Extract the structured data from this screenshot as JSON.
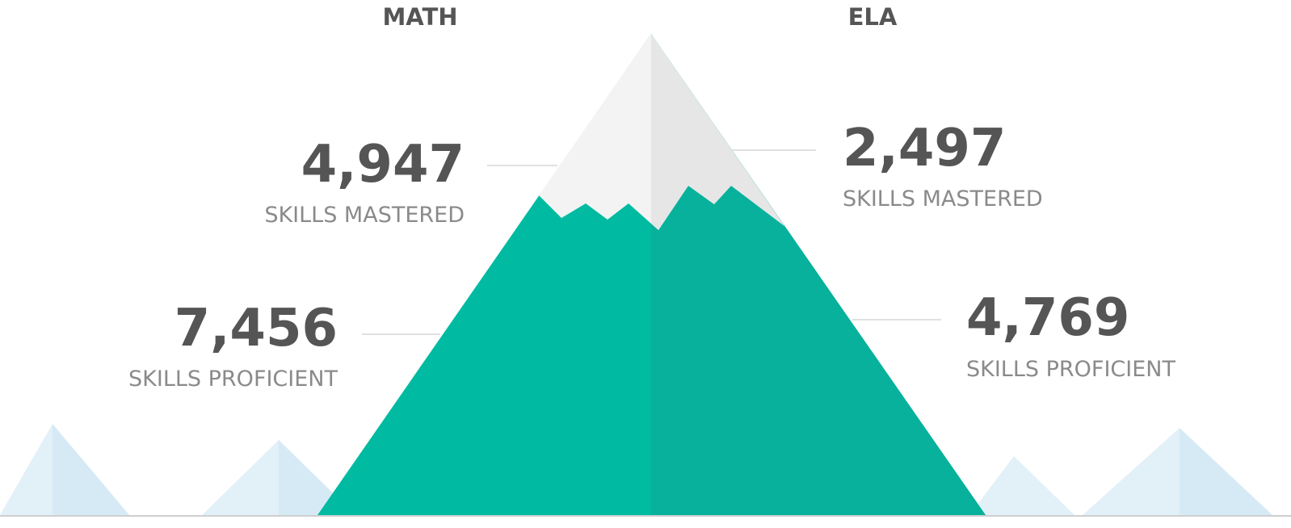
{
  "math": {
    "heading": "MATH",
    "mastered": {
      "number": "4,947",
      "label": "SKILLS MASTERED"
    },
    "proficient": {
      "number": "7,456",
      "label": "SKILLS PROFICIENT"
    }
  },
  "ela": {
    "heading": "ELA",
    "mastered": {
      "number": "2,497",
      "label": "SKILLS MASTERED"
    },
    "proficient": {
      "number": "4,769",
      "label": "SKILLS PROFICIENT"
    }
  }
}
